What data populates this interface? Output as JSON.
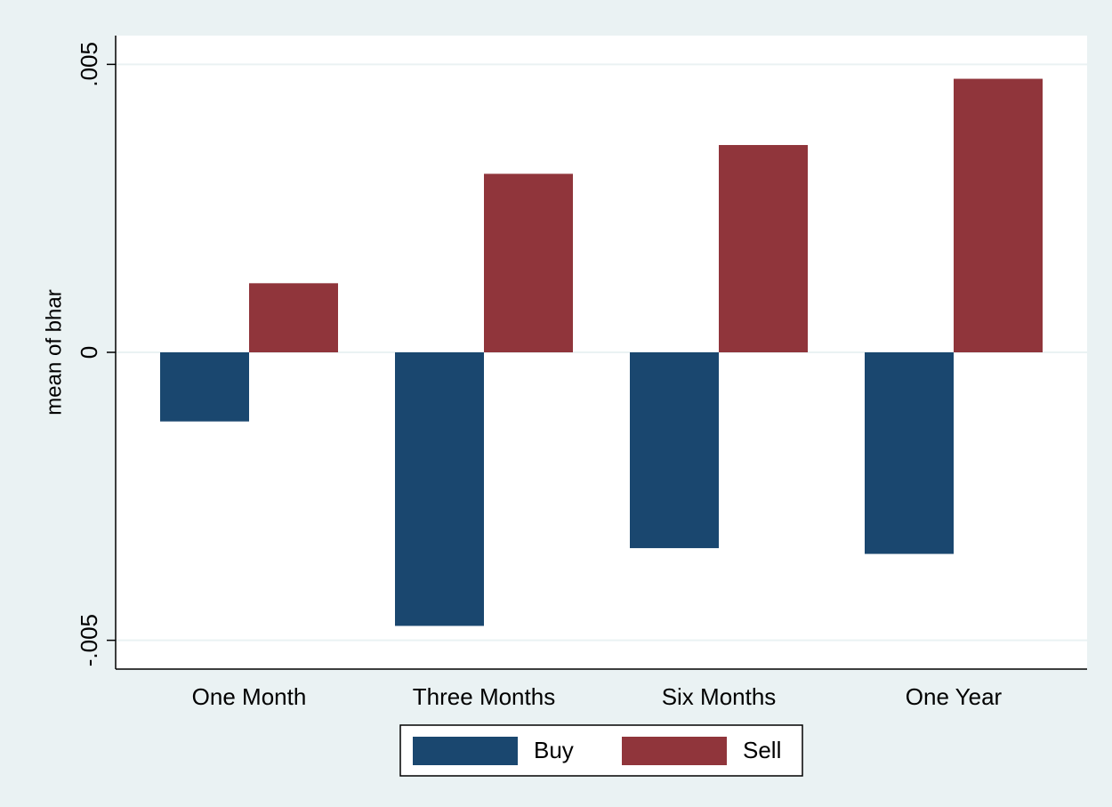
{
  "chart_data": {
    "type": "bar",
    "y_label": "mean of bhar",
    "categories": [
      "One Month",
      "Three Months",
      "Six Months",
      "One Year"
    ],
    "series": [
      {
        "name": "Buy",
        "color": "#1a476f",
        "values": [
          -0.0012,
          -0.00475,
          -0.0034,
          -0.0035
        ]
      },
      {
        "name": "Sell",
        "color": "#90353b",
        "values": [
          0.0012,
          0.0031,
          0.0036,
          0.00475
        ]
      }
    ],
    "ylim": [
      -0.0055,
      0.0055
    ],
    "yticks": [
      {
        "value": -0.005,
        "label": "-.005"
      },
      0,
      {
        "value": 0.005,
        "label": ".005"
      }
    ],
    "grid": true,
    "legend": "bottom"
  }
}
